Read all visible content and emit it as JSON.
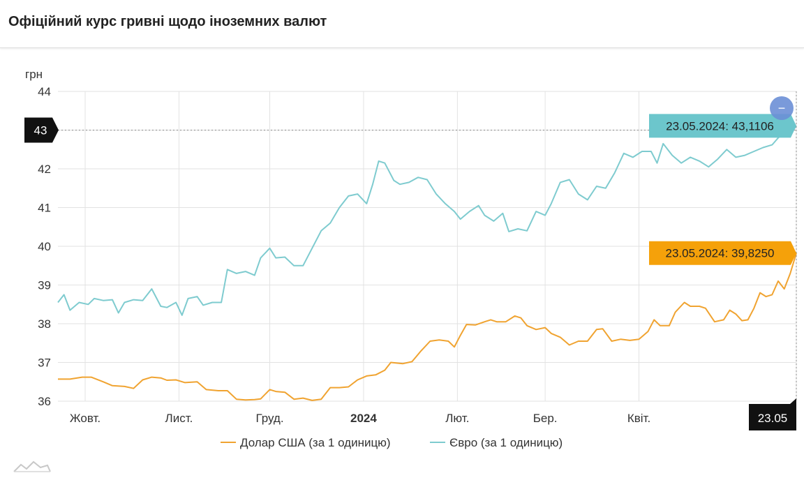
{
  "header": {
    "title": "Офіційний курс гривні щодо іноземних валют"
  },
  "chart_data": {
    "type": "line",
    "ylabel": "грн",
    "ylim": [
      36,
      44
    ],
    "yticks": [
      36,
      37,
      38,
      39,
      40,
      41,
      42,
      43,
      44
    ],
    "x_range": [
      "2023-09-22",
      "2024-05-23"
    ],
    "xtick_labels": [
      {
        "date": "2023-10-01",
        "label": "Жовт.",
        "bold": false
      },
      {
        "date": "2023-11-01",
        "label": "Лист.",
        "bold": false
      },
      {
        "date": "2023-12-01",
        "label": "Груд.",
        "bold": false
      },
      {
        "date": "2024-01-01",
        "label": "2024",
        "bold": true
      },
      {
        "date": "2024-02-01",
        "label": "Лют.",
        "bold": false
      },
      {
        "date": "2024-03-01",
        "label": "Бер.",
        "bold": false
      },
      {
        "date": "2024-04-01",
        "label": "Квіт.",
        "bold": false
      }
    ],
    "grid": true,
    "crosshair": {
      "y_label": "43",
      "x_label": "23.05"
    },
    "series": [
      {
        "name": "Долар США (за 1 одиницю)",
        "color": "#f0a330",
        "tooltip": "23.05.2024: 39,8250",
        "tooltip_color": "#f5a10a",
        "points": [
          [
            "2023-09-22",
            36.57
          ],
          [
            "2023-09-26",
            36.57
          ],
          [
            "2023-09-30",
            36.62
          ],
          [
            "2023-10-03",
            36.62
          ],
          [
            "2023-10-07",
            36.5
          ],
          [
            "2023-10-10",
            36.4
          ],
          [
            "2023-10-14",
            36.38
          ],
          [
            "2023-10-17",
            36.33
          ],
          [
            "2023-10-20",
            36.55
          ],
          [
            "2023-10-23",
            36.62
          ],
          [
            "2023-10-26",
            36.6
          ],
          [
            "2023-10-28",
            36.54
          ],
          [
            "2023-10-31",
            36.55
          ],
          [
            "2023-11-03",
            36.48
          ],
          [
            "2023-11-07",
            36.5
          ],
          [
            "2023-11-10",
            36.3
          ],
          [
            "2023-11-14",
            36.27
          ],
          [
            "2023-11-17",
            36.27
          ],
          [
            "2023-11-20",
            36.05
          ],
          [
            "2023-11-23",
            36.03
          ],
          [
            "2023-11-26",
            36.04
          ],
          [
            "2023-11-28",
            36.06
          ],
          [
            "2023-12-01",
            36.3
          ],
          [
            "2023-12-03",
            36.25
          ],
          [
            "2023-12-06",
            36.23
          ],
          [
            "2023-12-09",
            36.05
          ],
          [
            "2023-12-12",
            36.08
          ],
          [
            "2023-12-15",
            36.02
          ],
          [
            "2023-12-18",
            36.05
          ],
          [
            "2023-12-21",
            36.35
          ],
          [
            "2023-12-24",
            36.35
          ],
          [
            "2023-12-27",
            36.37
          ],
          [
            "2023-12-30",
            36.55
          ],
          [
            "2024-01-02",
            36.65
          ],
          [
            "2024-01-05",
            36.68
          ],
          [
            "2024-01-08",
            36.8
          ],
          [
            "2024-01-10",
            37.0
          ],
          [
            "2024-01-14",
            36.97
          ],
          [
            "2024-01-17",
            37.02
          ],
          [
            "2024-01-20",
            37.3
          ],
          [
            "2024-01-23",
            37.55
          ],
          [
            "2024-01-26",
            37.58
          ],
          [
            "2024-01-29",
            37.55
          ],
          [
            "2024-01-31",
            37.4
          ],
          [
            "2024-02-02",
            37.7
          ],
          [
            "2024-02-04",
            37.98
          ],
          [
            "2024-02-07",
            37.97
          ],
          [
            "2024-02-10",
            38.05
          ],
          [
            "2024-02-12",
            38.1
          ],
          [
            "2024-02-14",
            38.05
          ],
          [
            "2024-02-17",
            38.05
          ],
          [
            "2024-02-20",
            38.2
          ],
          [
            "2024-02-22",
            38.15
          ],
          [
            "2024-02-24",
            37.95
          ],
          [
            "2024-02-27",
            37.85
          ],
          [
            "2024-03-01",
            37.9
          ],
          [
            "2024-03-03",
            37.75
          ],
          [
            "2024-03-06",
            37.65
          ],
          [
            "2024-03-09",
            37.45
          ],
          [
            "2024-03-12",
            37.55
          ],
          [
            "2024-03-15",
            37.55
          ],
          [
            "2024-03-18",
            37.85
          ],
          [
            "2024-03-20",
            37.87
          ],
          [
            "2024-03-23",
            37.55
          ],
          [
            "2024-03-26",
            37.6
          ],
          [
            "2024-03-29",
            37.57
          ],
          [
            "2024-04-01",
            37.6
          ],
          [
            "2024-04-04",
            37.8
          ],
          [
            "2024-04-06",
            38.1
          ],
          [
            "2024-04-08",
            37.95
          ],
          [
            "2024-04-11",
            37.95
          ],
          [
            "2024-04-13",
            38.3
          ],
          [
            "2024-04-16",
            38.55
          ],
          [
            "2024-04-18",
            38.45
          ],
          [
            "2024-04-21",
            38.45
          ],
          [
            "2024-04-23",
            38.4
          ],
          [
            "2024-04-26",
            38.05
          ],
          [
            "2024-04-29",
            38.1
          ],
          [
            "2024-05-01",
            38.35
          ],
          [
            "2024-05-03",
            38.25
          ],
          [
            "2024-05-05",
            38.08
          ],
          [
            "2024-05-07",
            38.1
          ],
          [
            "2024-05-09",
            38.4
          ],
          [
            "2024-05-11",
            38.8
          ],
          [
            "2024-05-13",
            38.7
          ],
          [
            "2024-05-15",
            38.75
          ],
          [
            "2024-05-17",
            39.1
          ],
          [
            "2024-05-19",
            38.9
          ],
          [
            "2024-05-21",
            39.3
          ],
          [
            "2024-05-23",
            39.825
          ]
        ]
      },
      {
        "name": "Євро (за 1 одиницю)",
        "color": "#7ecbcf",
        "tooltip": "23.05.2024: 43,1106",
        "tooltip_color": "#6cc6cc",
        "points": [
          [
            "2023-09-22",
            38.55
          ],
          [
            "2023-09-24",
            38.75
          ],
          [
            "2023-09-26",
            38.35
          ],
          [
            "2023-09-29",
            38.55
          ],
          [
            "2023-10-02",
            38.5
          ],
          [
            "2023-10-04",
            38.65
          ],
          [
            "2023-10-07",
            38.6
          ],
          [
            "2023-10-10",
            38.62
          ],
          [
            "2023-10-12",
            38.28
          ],
          [
            "2023-10-14",
            38.55
          ],
          [
            "2023-10-17",
            38.62
          ],
          [
            "2023-10-20",
            38.6
          ],
          [
            "2023-10-23",
            38.9
          ],
          [
            "2023-10-26",
            38.45
          ],
          [
            "2023-10-28",
            38.42
          ],
          [
            "2023-10-31",
            38.55
          ],
          [
            "2023-11-02",
            38.22
          ],
          [
            "2023-11-04",
            38.65
          ],
          [
            "2023-11-07",
            38.7
          ],
          [
            "2023-11-09",
            38.48
          ],
          [
            "2023-11-12",
            38.55
          ],
          [
            "2023-11-15",
            38.55
          ],
          [
            "2023-11-17",
            39.4
          ],
          [
            "2023-11-20",
            39.3
          ],
          [
            "2023-11-23",
            39.35
          ],
          [
            "2023-11-26",
            39.25
          ],
          [
            "2023-11-28",
            39.7
          ],
          [
            "2023-12-01",
            39.95
          ],
          [
            "2023-12-03",
            39.7
          ],
          [
            "2023-12-06",
            39.72
          ],
          [
            "2023-12-09",
            39.5
          ],
          [
            "2023-12-12",
            39.5
          ],
          [
            "2023-12-15",
            39.95
          ],
          [
            "2023-12-18",
            40.4
          ],
          [
            "2023-12-21",
            40.6
          ],
          [
            "2023-12-24",
            41.0
          ],
          [
            "2023-12-27",
            41.3
          ],
          [
            "2023-12-30",
            41.35
          ],
          [
            "2024-01-02",
            41.1
          ],
          [
            "2024-01-04",
            41.6
          ],
          [
            "2024-01-06",
            42.2
          ],
          [
            "2024-01-08",
            42.15
          ],
          [
            "2024-01-11",
            41.7
          ],
          [
            "2024-01-13",
            41.6
          ],
          [
            "2024-01-16",
            41.65
          ],
          [
            "2024-01-19",
            41.78
          ],
          [
            "2024-01-22",
            41.72
          ],
          [
            "2024-01-25",
            41.35
          ],
          [
            "2024-01-28",
            41.1
          ],
          [
            "2024-01-31",
            40.9
          ],
          [
            "2024-02-02",
            40.7
          ],
          [
            "2024-02-05",
            40.9
          ],
          [
            "2024-02-08",
            41.05
          ],
          [
            "2024-02-10",
            40.8
          ],
          [
            "2024-02-13",
            40.65
          ],
          [
            "2024-02-16",
            40.85
          ],
          [
            "2024-02-18",
            40.38
          ],
          [
            "2024-02-21",
            40.45
          ],
          [
            "2024-02-24",
            40.4
          ],
          [
            "2024-02-27",
            40.9
          ],
          [
            "2024-03-01",
            40.8
          ],
          [
            "2024-03-03",
            41.1
          ],
          [
            "2024-03-06",
            41.65
          ],
          [
            "2024-03-09",
            41.72
          ],
          [
            "2024-03-12",
            41.35
          ],
          [
            "2024-03-15",
            41.2
          ],
          [
            "2024-03-18",
            41.55
          ],
          [
            "2024-03-21",
            41.5
          ],
          [
            "2024-03-24",
            41.9
          ],
          [
            "2024-03-27",
            42.4
          ],
          [
            "2024-03-30",
            42.3
          ],
          [
            "2024-04-02",
            42.45
          ],
          [
            "2024-04-05",
            42.45
          ],
          [
            "2024-04-07",
            42.15
          ],
          [
            "2024-04-09",
            42.65
          ],
          [
            "2024-04-12",
            42.35
          ],
          [
            "2024-04-15",
            42.15
          ],
          [
            "2024-04-18",
            42.3
          ],
          [
            "2024-04-21",
            42.2
          ],
          [
            "2024-04-24",
            42.05
          ],
          [
            "2024-04-27",
            42.25
          ],
          [
            "2024-04-30",
            42.5
          ],
          [
            "2024-05-03",
            42.3
          ],
          [
            "2024-05-06",
            42.35
          ],
          [
            "2024-05-09",
            42.45
          ],
          [
            "2024-05-12",
            42.55
          ],
          [
            "2024-05-15",
            42.62
          ],
          [
            "2024-05-17",
            42.8
          ],
          [
            "2024-05-19",
            42.95
          ],
          [
            "2024-05-21",
            42.9
          ],
          [
            "2024-05-23",
            43.1106
          ]
        ]
      }
    ]
  },
  "controls": {
    "zoom_out_button": "−"
  }
}
